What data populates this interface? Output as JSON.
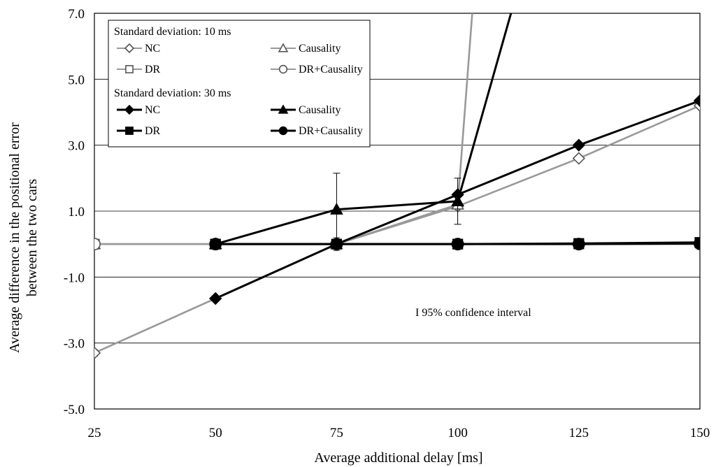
{
  "chart_data": {
    "type": "line",
    "xlabel": "Average additional delay [ms]",
    "ylabel_line1": "Average difference in the positional error",
    "ylabel_line2": "between the two cars",
    "xlim": [
      25,
      150
    ],
    "ylim": [
      -5.0,
      7.0
    ],
    "xticks": [
      25,
      50,
      75,
      100,
      125,
      150
    ],
    "xtick_labels": [
      "25",
      "50",
      "75",
      "100",
      "125",
      "150"
    ],
    "yticks": [
      -5,
      -3,
      -1,
      1,
      3,
      5,
      7
    ],
    "ytick_labels": [
      "-5.0",
      "-3.0",
      "-1.0",
      "1.0",
      "3.0",
      "5.0",
      "7.0"
    ],
    "grid": "horizontal",
    "annotation": "I 95% confidence interval",
    "legend": {
      "placement": "top-left",
      "group_10": "Standard deviation: 10 ms",
      "group_30": "Standard deviation: 30 ms"
    },
    "series": [
      {
        "name": "NC",
        "group": "10",
        "color": "#999999",
        "marker": "diamond-open",
        "x": [
          25,
          50,
          75,
          100,
          125,
          150
        ],
        "y": [
          -3.3,
          -1.65,
          0.0,
          1.15,
          2.6,
          4.2
        ],
        "err": [
          0.1,
          0.05,
          0.2,
          0.1,
          0.05,
          0.05
        ]
      },
      {
        "name": "Causality",
        "group": "10",
        "color": "#999999",
        "marker": "triangle-open",
        "x": [
          25,
          50,
          75,
          100,
          103
        ],
        "y": [
          0.0,
          0.0,
          0.0,
          1.2,
          7.0
        ],
        "err": [
          0.0,
          0.0,
          0.0,
          0.0,
          0.0
        ]
      },
      {
        "name": "DR",
        "group": "10",
        "color": "#999999",
        "marker": "square-open",
        "x": [
          25,
          50,
          75,
          100,
          125,
          150
        ],
        "y": [
          0.0,
          0.0,
          0.0,
          0.0,
          0.0,
          0.05
        ],
        "err": [
          0.0,
          0.0,
          0.0,
          0.0,
          0.0,
          0.0
        ]
      },
      {
        "name": "DR+Causality",
        "group": "10",
        "color": "#999999",
        "marker": "circle-open",
        "x": [
          25,
          50,
          75,
          100,
          125,
          150
        ],
        "y": [
          0.0,
          0.0,
          0.0,
          0.0,
          0.0,
          0.0
        ],
        "err": [
          0.0,
          0.0,
          0.0,
          0.0,
          0.0,
          0.0
        ]
      },
      {
        "name": "NC",
        "group": "30",
        "color": "#000000",
        "marker": "diamond-filled",
        "x": [
          50,
          75,
          100,
          125,
          150
        ],
        "y": [
          -1.65,
          0.0,
          1.5,
          3.0,
          4.35
        ],
        "err": [
          0.0,
          0.0,
          0.0,
          0.0,
          0.0
        ]
      },
      {
        "name": "Causality",
        "group": "30",
        "color": "#000000",
        "marker": "triangle-filled",
        "x": [
          50,
          75,
          100,
          111
        ],
        "y": [
          0.0,
          1.05,
          1.3,
          7.0
        ],
        "err": [
          0.0,
          1.1,
          0.7,
          0.0
        ]
      },
      {
        "name": "DR",
        "group": "30",
        "color": "#000000",
        "marker": "square-filled",
        "x": [
          50,
          75,
          100,
          125,
          150
        ],
        "y": [
          0.0,
          0.0,
          0.0,
          0.02,
          0.05
        ],
        "err": [
          0.0,
          0.0,
          0.0,
          0.0,
          0.0
        ]
      },
      {
        "name": "DR+Causality",
        "group": "30",
        "color": "#000000",
        "marker": "circle-filled",
        "x": [
          50,
          75,
          100,
          125,
          150
        ],
        "y": [
          0.0,
          0.0,
          0.0,
          0.0,
          0.02
        ],
        "err": [
          0.0,
          0.0,
          0.0,
          0.0,
          0.0
        ]
      }
    ]
  }
}
